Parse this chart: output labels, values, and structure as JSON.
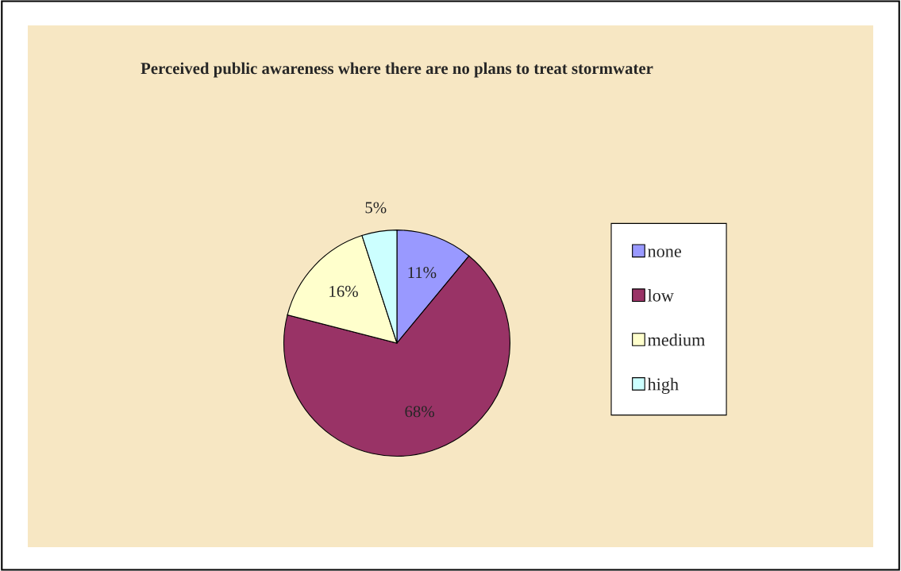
{
  "chart_data": {
    "type": "pie",
    "title": "Perceived public awareness where there are no plans to treat stormwater",
    "categories": [
      "none",
      "low",
      "medium",
      "high"
    ],
    "values": [
      11,
      68,
      16,
      5
    ],
    "value_labels": [
      "11%",
      "68%",
      "16%",
      "5%"
    ],
    "colors": [
      "#9999ff",
      "#993366",
      "#ffffcc",
      "#ccffff"
    ],
    "legend": "right"
  }
}
